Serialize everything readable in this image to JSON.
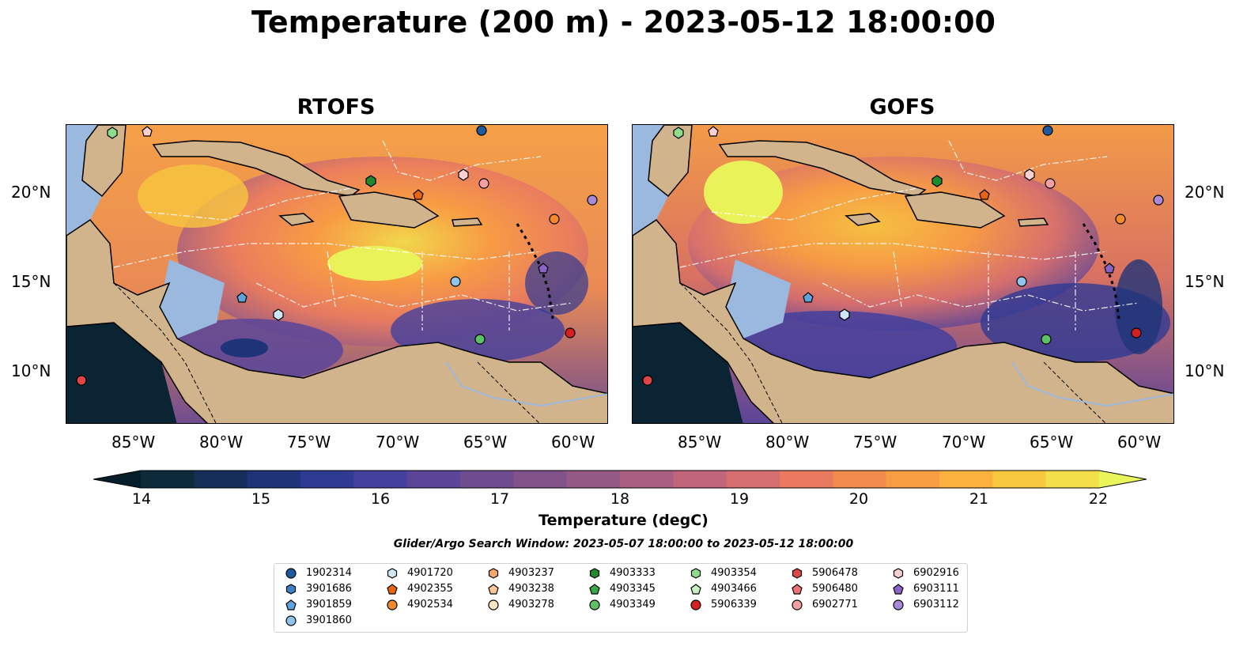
{
  "title": "Temperature (200 m) - 2023-05-12 18:00:00",
  "panels": [
    {
      "title": "RTOFS"
    },
    {
      "title": "GOFS"
    }
  ],
  "axes": {
    "x_ticks": [
      "85°W",
      "80°W",
      "75°W",
      "70°W",
      "65°W",
      "60°W"
    ],
    "y_ticks": [
      "20°N",
      "15°N",
      "10°N"
    ]
  },
  "colorbar": {
    "label": "Temperature (degC)",
    "ticks": [
      "14",
      "15",
      "16",
      "17",
      "18",
      "19",
      "20",
      "21",
      "22"
    ],
    "colors": [
      "#0d2a3a",
      "#152e5a",
      "#1f3478",
      "#2f3a93",
      "#43409e",
      "#5a4599",
      "#6f4c90",
      "#82528a",
      "#955986",
      "#a95f80",
      "#c0657a",
      "#d56e6f",
      "#e97a60",
      "#f48b4e",
      "#f99d43",
      "#fbb13d",
      "#f7c73e",
      "#f2df4a"
    ],
    "min_color": "#061e2a",
    "max_color": "#e9f55a",
    "land": "#d2b48c",
    "shallow": "#9bb8de"
  },
  "search_window": "Glider/Argo Search Window: 2023-05-07 18:00:00 to 2023-05-12 18:00:00",
  "legend": {
    "columns": [
      [
        {
          "label": "1902314",
          "marker": "circle",
          "color": "#1f5a9e"
        },
        {
          "label": "3901686",
          "marker": "hexagon",
          "color": "#3b7fc4"
        },
        {
          "label": "3901859",
          "marker": "pentagon",
          "color": "#5ea4dc"
        },
        {
          "label": "3901860",
          "marker": "circle",
          "color": "#8fc4ec"
        }
      ],
      [
        {
          "label": "4901720",
          "marker": "hexagon",
          "color": "#cde7f7"
        },
        {
          "label": "4902355",
          "marker": "pentagon",
          "color": "#e8650e"
        },
        {
          "label": "4902534",
          "marker": "circle",
          "color": "#f58a2b"
        }
      ],
      [
        {
          "label": "4903237",
          "marker": "hexagon",
          "color": "#f8a865"
        },
        {
          "label": "4903238",
          "marker": "pentagon",
          "color": "#fbc796"
        },
        {
          "label": "4903278",
          "marker": "circle",
          "color": "#fde3c8"
        }
      ],
      [
        {
          "label": "4903333",
          "marker": "hexagon",
          "color": "#1f8a2c"
        },
        {
          "label": "4903345",
          "marker": "pentagon",
          "color": "#3aa84a"
        },
        {
          "label": "4903349",
          "marker": "circle",
          "color": "#5cc265"
        }
      ],
      [
        {
          "label": "4903354",
          "marker": "hexagon",
          "color": "#8fdc8c"
        },
        {
          "label": "4903466",
          "marker": "pentagon",
          "color": "#c8efc0"
        },
        {
          "label": "5906339",
          "marker": "circle",
          "color": "#d42020"
        }
      ],
      [
        {
          "label": "5906478",
          "marker": "hexagon",
          "color": "#e04545"
        },
        {
          "label": "5906480",
          "marker": "pentagon",
          "color": "#ec7272"
        },
        {
          "label": "6902771",
          "marker": "circle",
          "color": "#f4a0a0"
        }
      ],
      [
        {
          "label": "6902916",
          "marker": "hexagon",
          "color": "#fad0d0"
        },
        {
          "label": "6903111",
          "marker": "pentagon",
          "color": "#8a63c7"
        },
        {
          "label": "6903112",
          "marker": "circle",
          "color": "#a98ad8"
        }
      ]
    ]
  }
}
